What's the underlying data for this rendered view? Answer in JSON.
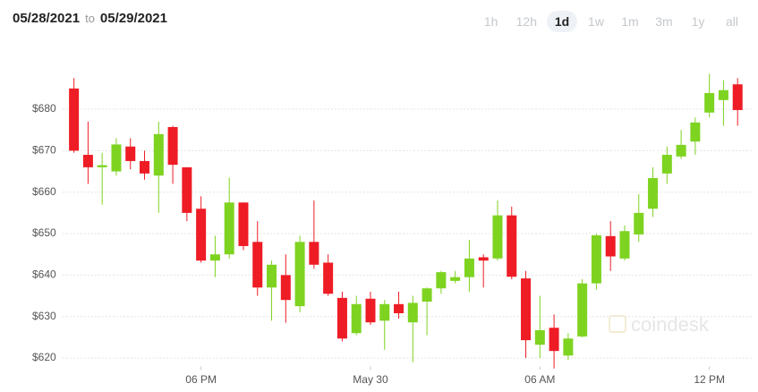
{
  "header": {
    "date_from": "05/28/2021",
    "to": "to",
    "date_to": "05/29/2021",
    "ranges": [
      "1h",
      "12h",
      "1d",
      "1w",
      "1m",
      "3m",
      "1y",
      "all"
    ],
    "selected_range": "1d"
  },
  "chart_data": {
    "type": "candlestick",
    "watermark": "coindesk",
    "x": [
      1.5,
      2,
      2.5,
      3,
      3.5,
      4,
      4.5,
      5,
      5.5,
      6,
      6.5,
      7,
      7.5,
      8,
      8.5,
      9,
      9.5,
      10,
      10.5,
      11,
      11.5,
      12,
      12.5,
      13,
      13.5,
      14,
      14.5,
      15,
      15.5,
      16,
      16.5,
      17,
      17.5,
      18,
      18.5,
      19,
      19.5,
      20,
      20.5,
      21,
      21.5,
      22,
      22.5,
      23,
      23.5,
      24,
      24.5,
      25
    ],
    "open": [
      685,
      669,
      666,
      665,
      671,
      667.5,
      664,
      675.7,
      666,
      656,
      643.5,
      645,
      657.5,
      648,
      637,
      640,
      632.5,
      648,
      643,
      634.5,
      626,
      634.3,
      629,
      633,
      628.6,
      633.6,
      636.8,
      638.6,
      639.5,
      644.3,
      644,
      654.4,
      639.2,
      623.2,
      627.3,
      620.6,
      625.2,
      638,
      649.4,
      644,
      649.8,
      656,
      664.5,
      668.6,
      672.2,
      679.2,
      682.2,
      686
    ],
    "high": [
      687.5,
      677,
      669.5,
      673,
      673,
      670,
      677,
      676,
      666,
      659,
      649.5,
      663.5,
      657.5,
      653,
      643.5,
      645,
      649.5,
      658,
      645,
      636,
      635,
      636,
      634,
      636,
      635,
      637,
      641,
      641,
      648.5,
      645,
      658,
      656.5,
      641,
      635,
      630.5,
      626,
      639,
      650,
      653,
      652,
      659.5,
      666,
      671,
      675,
      678,
      688.5,
      687,
      687.5
    ],
    "low": [
      669.5,
      662,
      657,
      664,
      665.5,
      663,
      655,
      662,
      653,
      643,
      639.5,
      644,
      646,
      635,
      629,
      628.5,
      631,
      641.5,
      635,
      624,
      625.5,
      628,
      622,
      629.5,
      619,
      625.5,
      635.5,
      638,
      636,
      637,
      643.5,
      639,
      620,
      620,
      617.5,
      619.5,
      625,
      636.5,
      641,
      643.5,
      648,
      654,
      662,
      668,
      669,
      678,
      676,
      676
    ],
    "close": [
      670,
      666,
      666.5,
      671.5,
      667.5,
      664.5,
      674,
      666.6,
      655,
      643.5,
      645,
      657.5,
      647,
      637,
      642.5,
      634,
      648,
      642.5,
      635.5,
      624.7,
      633,
      628.6,
      633,
      630.8,
      633.3,
      636.8,
      640.7,
      639.5,
      644,
      643.5,
      654.4,
      639.6,
      624.3,
      626.7,
      621.7,
      624.7,
      638,
      649.6,
      644.5,
      650.6,
      655,
      663.4,
      669,
      671.4,
      676.8,
      683.9,
      684.6,
      679.8
    ],
    "up_color": "#7ed321",
    "down_color": "#ee1c25",
    "xlim": [
      1.1,
      25.5
    ],
    "xticks": [
      {
        "value": 6,
        "label": "06 PM"
      },
      {
        "value": 12,
        "label": "May 30"
      },
      {
        "value": 18,
        "label": "06 AM"
      },
      {
        "value": 24,
        "label": "12 PM"
      }
    ],
    "ylim": [
      618,
      690
    ],
    "yticks": [
      {
        "value": 620,
        "label": "$620"
      },
      {
        "value": 630,
        "label": "$630"
      },
      {
        "value": 640,
        "label": "$640"
      },
      {
        "value": 650,
        "label": "$650"
      },
      {
        "value": 660,
        "label": "$660"
      },
      {
        "value": 670,
        "label": "$670"
      },
      {
        "value": 680,
        "label": "$680"
      }
    ],
    "grid": true
  }
}
